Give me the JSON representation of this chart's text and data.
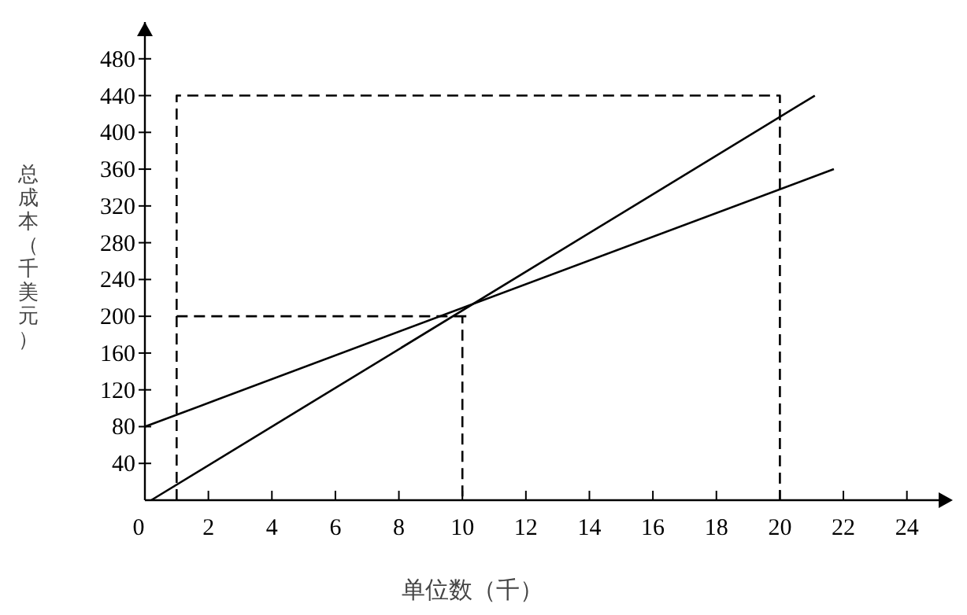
{
  "chart_data": {
    "type": "line",
    "xlabel": "单位数（千）",
    "ylabel": "总成本（千美元）",
    "xlim": [
      0,
      25
    ],
    "ylim": [
      0,
      520
    ],
    "xticks": [
      {
        "value": 0,
        "label": "0"
      },
      2,
      4,
      6,
      8,
      10,
      12,
      14,
      16,
      18,
      20,
      22,
      24
    ],
    "yticks": [
      40,
      80,
      120,
      160,
      200,
      240,
      280,
      320,
      360,
      400,
      440,
      480
    ],
    "grid": false,
    "marker": "none",
    "series": [
      {
        "color": "#000000",
        "x": [
          0.2,
          21.1
        ],
        "values": [
          0,
          440
        ],
        "line_style": "solid"
      },
      {
        "color": "#000000",
        "x": [
          0,
          21.7
        ],
        "values": [
          80,
          360
        ],
        "line_style": "solid"
      },
      {
        "color": "#000000",
        "x": [
          1,
          1,
          20,
          20
        ],
        "values": [
          0,
          440,
          440,
          0
        ],
        "line_style": "dashed"
      },
      {
        "color": "#000000",
        "x": [
          1,
          10.2,
          10,
          10
        ],
        "values": [
          200,
          200,
          200,
          0
        ],
        "line_style": "dashed"
      }
    ]
  }
}
